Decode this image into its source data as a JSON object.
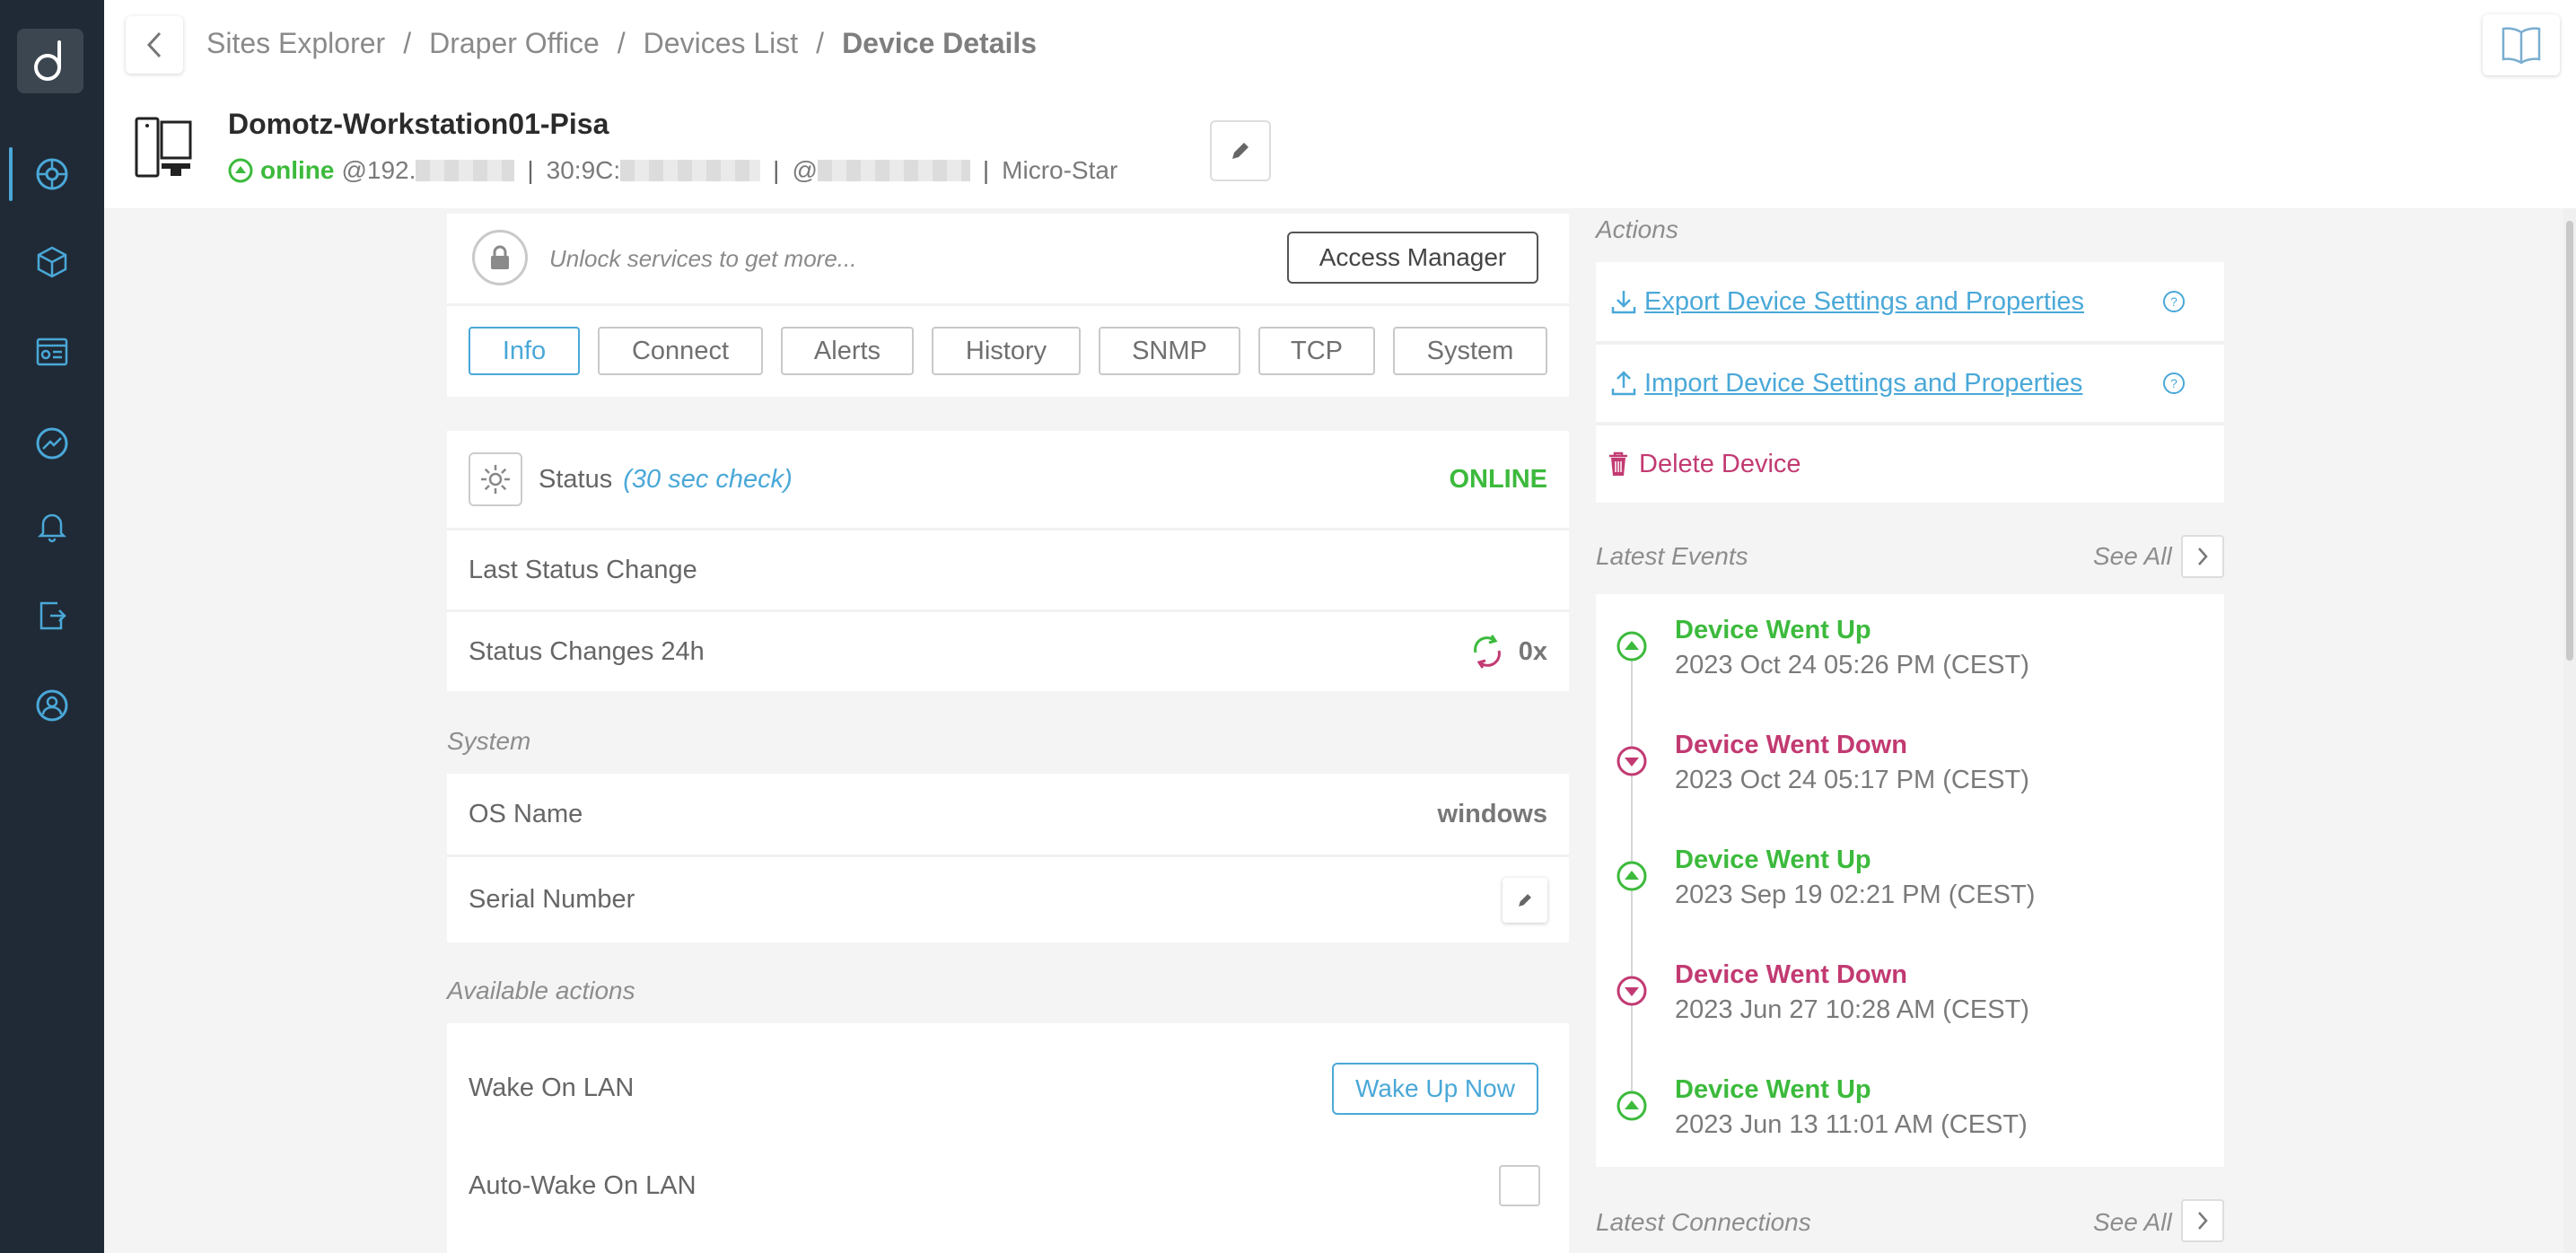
{
  "sidebar": {
    "logo": "d",
    "items": [
      {
        "icon": "globe-network-icon",
        "active": true
      },
      {
        "icon": "cube-icon",
        "active": false
      },
      {
        "icon": "dashboard-icon",
        "active": false
      },
      {
        "icon": "network-monitor-icon",
        "active": false
      },
      {
        "icon": "bell-icon",
        "active": false
      },
      {
        "icon": "export-share-icon",
        "active": false
      },
      {
        "icon": "user-support-icon",
        "active": false
      }
    ]
  },
  "breadcrumb": {
    "items": [
      "Sites Explorer",
      "Draper Office",
      "Devices List"
    ],
    "separator": "/",
    "current": "Device Details"
  },
  "device": {
    "name": "Domotz-Workstation01-Pisa",
    "status": "online",
    "ip_prefix": "@192.",
    "mac_prefix": "30:9C:",
    "host_prefix": "@",
    "vendor": "Micro-Star"
  },
  "unlock": {
    "text": "Unlock services to get more...",
    "button": "Access Manager"
  },
  "tabs": [
    "Info",
    "Connect",
    "Alerts",
    "History",
    "SNMP",
    "TCP",
    "System"
  ],
  "active_tab": "Info",
  "status_card": {
    "label": "Status",
    "check": "(30 sec check)",
    "value": "ONLINE",
    "last_change_label": "Last Status Change",
    "changes_label": "Status Changes 24h",
    "changes_value": "0x"
  },
  "system": {
    "section": "System",
    "os_label": "OS Name",
    "os_value": "windows",
    "serial_label": "Serial Number"
  },
  "available_actions": {
    "section": "Available actions",
    "wol_label": "Wake On LAN",
    "wol_button": "Wake Up Now",
    "autowake_label": "Auto-Wake On LAN"
  },
  "actions": {
    "section": "Actions",
    "export": "Export Device Settings and Properties",
    "import": "Import Device Settings and Properties",
    "delete": "Delete Device"
  },
  "latest_events": {
    "section": "Latest Events",
    "see_all": "See All",
    "items": [
      {
        "title": "Device Went Up",
        "date": "2023 Oct 24 05:26 PM (CEST)",
        "type": "up"
      },
      {
        "title": "Device Went Down",
        "date": "2023 Oct 24 05:17 PM (CEST)",
        "type": "down"
      },
      {
        "title": "Device Went Up",
        "date": "2023 Sep 19 02:21 PM (CEST)",
        "type": "up"
      },
      {
        "title": "Device Went Down",
        "date": "2023 Jun 27 10:28 AM (CEST)",
        "type": "down"
      },
      {
        "title": "Device Went Up",
        "date": "2023 Jun 13 11:01 AM (CEST)",
        "type": "up"
      }
    ]
  },
  "latest_connections": {
    "section": "Latest Connections",
    "see_all": "See All"
  },
  "colors": {
    "sidebar": "#1f2a36",
    "accent": "#4aa8d8",
    "online": "#3cba3c",
    "down": "#c23a72"
  }
}
